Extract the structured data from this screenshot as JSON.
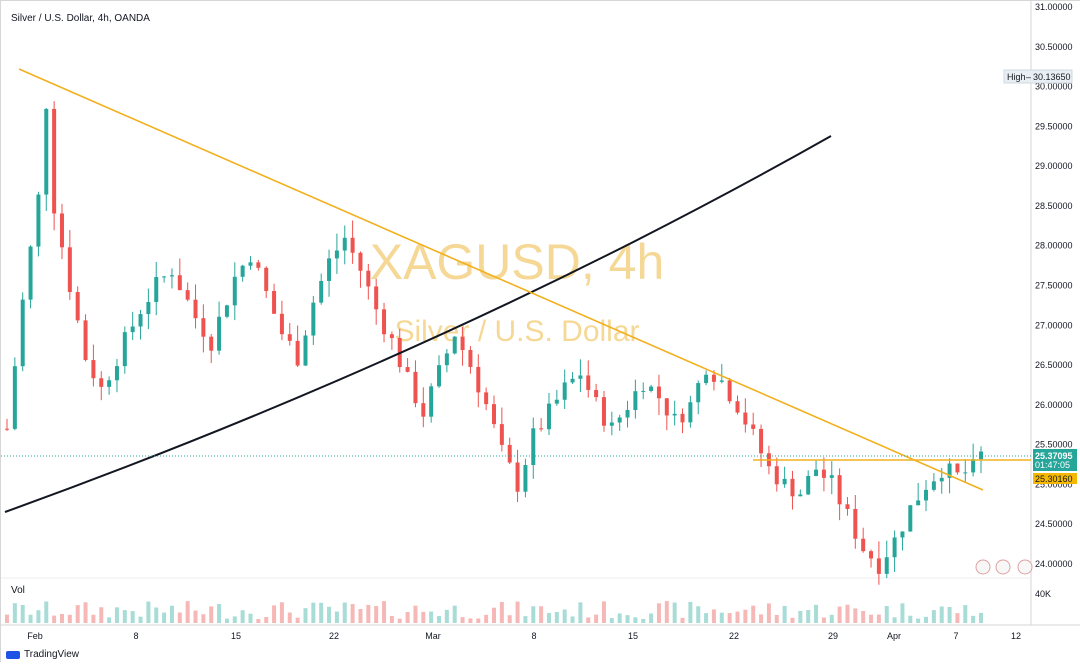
{
  "header": {
    "title": "Silver / U.S. Dollar, 4h, OANDA"
  },
  "watermark": {
    "symbol": "XAGUSD, 4h",
    "description": "Silver / U.S. Dollar"
  },
  "volume_label": "Vol",
  "footer": {
    "brand": "TradingView"
  },
  "markers": {
    "high_label": "High",
    "high_value": "30.13650",
    "current_price": "25.37095",
    "countdown": "01:47:05",
    "level_price": "25.30160"
  },
  "colors": {
    "up": "#26a69a",
    "down": "#ef5350",
    "trendline": "#f2b01e",
    "curve": "#131722",
    "watermark": "#f5d48a",
    "current_price_bg": "#26a69a",
    "level_bg": "#f5b800"
  },
  "chart_data": {
    "type": "candlestick",
    "title": "Silver / U.S. Dollar, 4h, OANDA",
    "y_ticks": [
      "31.00000",
      "30.50000",
      "30.00000",
      "29.50000",
      "29.00000",
      "28.50000",
      "28.00000",
      "27.50000",
      "27.00000",
      "26.50000",
      "26.00000",
      "25.50000",
      "25.00000",
      "24.50000",
      "24.00000"
    ],
    "volume_tick": "40K",
    "x_ticks": [
      "Feb",
      "8",
      "15",
      "22",
      "Mar",
      "8",
      "15",
      "22",
      "29",
      "Apr",
      "7",
      "12"
    ],
    "ylim": [
      23.85,
      31.05
    ],
    "series": {
      "name": "XAGUSD",
      "approx_closes": [
        [
          1,
          25.7
        ],
        [
          3,
          27.3
        ],
        [
          5,
          28.6
        ],
        [
          6,
          29.8
        ],
        [
          7,
          28.5
        ],
        [
          9,
          27.5
        ],
        [
          11,
          26.6
        ],
        [
          13,
          26.2
        ],
        [
          16,
          26.8
        ],
        [
          18,
          27.2
        ],
        [
          20,
          27.5
        ],
        [
          22,
          27.7
        ],
        [
          25,
          27.1
        ],
        [
          27,
          26.8
        ],
        [
          30,
          27.6
        ],
        [
          32,
          27.9
        ],
        [
          34,
          27.4
        ],
        [
          36,
          26.9
        ],
        [
          38,
          26.6
        ],
        [
          40,
          27.3
        ],
        [
          42,
          27.8
        ],
        [
          44,
          28.1
        ],
        [
          46,
          27.7
        ],
        [
          48,
          27.2
        ],
        [
          50,
          26.8
        ],
        [
          52,
          26.3
        ],
        [
          54,
          25.9
        ],
        [
          56,
          26.4
        ],
        [
          58,
          26.9
        ],
        [
          60,
          26.5
        ],
        [
          62,
          26.0
        ],
        [
          64,
          25.4
        ],
        [
          66,
          25.0
        ],
        [
          68,
          25.6
        ],
        [
          70,
          25.9
        ],
        [
          72,
          26.2
        ],
        [
          74,
          26.4
        ],
        [
          76,
          26.0
        ],
        [
          78,
          25.7
        ],
        [
          80,
          26.0
        ],
        [
          82,
          26.3
        ],
        [
          84,
          26.1
        ],
        [
          86,
          25.8
        ],
        [
          88,
          26.0
        ],
        [
          90,
          26.5
        ],
        [
          92,
          26.3
        ],
        [
          94,
          26.0
        ],
        [
          96,
          25.6
        ],
        [
          98,
          25.2
        ],
        [
          100,
          25.0
        ],
        [
          102,
          24.9
        ],
        [
          104,
          25.2
        ],
        [
          106,
          25.0
        ],
        [
          108,
          24.6
        ],
        [
          110,
          24.2
        ],
        [
          112,
          24.0
        ],
        [
          114,
          24.3
        ],
        [
          116,
          24.7
        ],
        [
          118,
          25.0
        ],
        [
          120,
          25.2
        ],
        [
          122,
          25.1
        ],
        [
          124,
          25.2
        ],
        [
          125,
          25.37
        ]
      ]
    },
    "overlays": [
      {
        "type": "trendline",
        "color": "#f2b01e",
        "from": [
          "Feb",
          30.1
        ],
        "to": [
          "Apr 7",
          24.95
        ]
      },
      {
        "type": "horizontal_segment",
        "color": "#f2b01e",
        "price": 25.3016
      },
      {
        "type": "curve",
        "color": "#131722"
      }
    ]
  }
}
